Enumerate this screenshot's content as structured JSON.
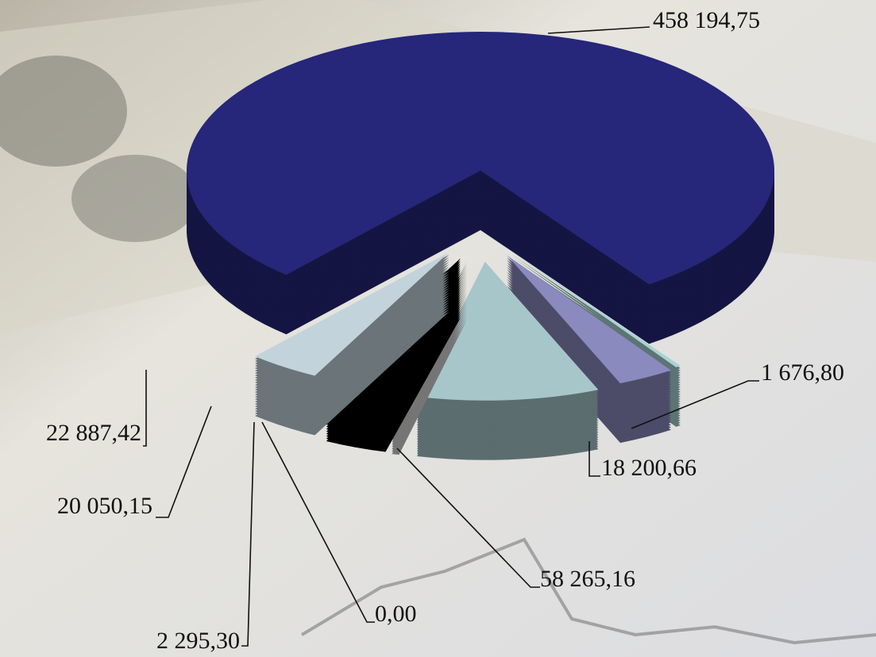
{
  "chart_data": {
    "type": "pie3d",
    "values": [
      458194.75,
      1676.8,
      18200.66,
      58265.16,
      0.0,
      2295.3,
      20050.15,
      22887.42
    ],
    "value_labels": [
      "458 194,75",
      "1 676,80",
      "18 200,66",
      "58 265,16",
      "0,00",
      "2 295,30",
      "20 050,15",
      "22 887,42"
    ],
    "colors": [
      "#26267a",
      "#a9d3d3",
      "#8a8abf",
      "#a7c6ca",
      "#26267a",
      "#d4d4d4",
      "#000000",
      "#c2d3db"
    ]
  }
}
